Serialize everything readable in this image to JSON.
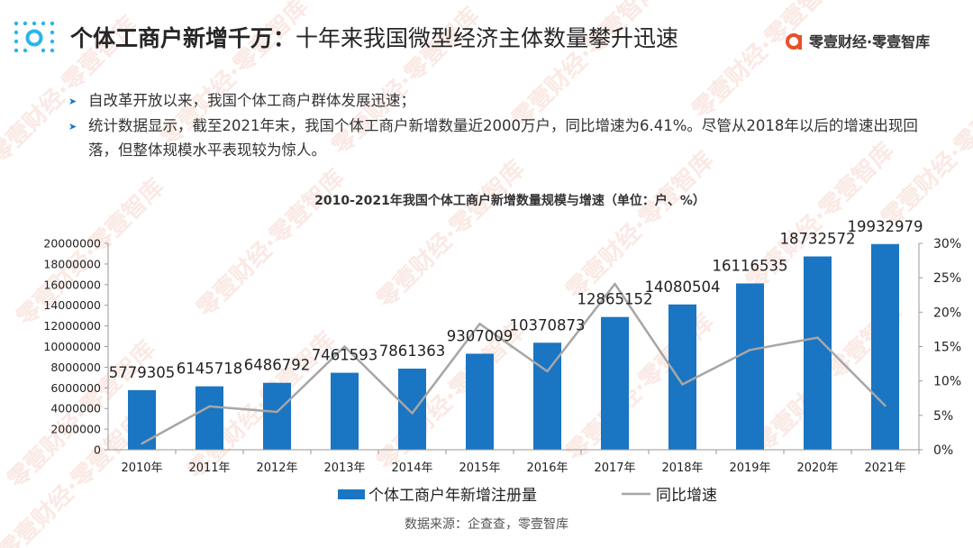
{
  "header": {
    "title_bold": "个体工商户新增千万：",
    "title_rest": "十年来我国微型经济主体数量攀升迅速",
    "brand_name": "零壹财经·零壹智库",
    "brand_icon": "brand-logo-icon"
  },
  "bullets": [
    "自改革开放以来，我国个体工商户群体发展迅速；",
    "统计数据显示，截至2021年末，我国个体工商户新增数量近2000万户，同比增速为6.41%。尽管从2018年以后的增速出现回落，但整体规模水平表现较为惊人。"
  ],
  "source": "数据来源：企查查，零壹智库",
  "colors": {
    "accent": "#1a75c2",
    "bar": "#1a75c2",
    "line": "#a6a6a6",
    "title": "#262626"
  },
  "chart_data": {
    "type": "bar",
    "title": "2010-2021年我国个体工商户新增数量规模与增速（单位：户、%）",
    "categories": [
      "2010年",
      "2011年",
      "2012年",
      "2013年",
      "2014年",
      "2015年",
      "2016年",
      "2017年",
      "2018年",
      "2019年",
      "2020年",
      "2021年"
    ],
    "series": [
      {
        "name": "个体工商户年新增注册量",
        "type": "bar",
        "axis": "left",
        "values": [
          5779305,
          6145718,
          6486792,
          7461593,
          7861363,
          9307009,
          10370873,
          12865152,
          14080504,
          16116535,
          18732572,
          19932979
        ]
      },
      {
        "name": "同比增速",
        "type": "line",
        "axis": "right",
        "values": [
          0.9,
          6.3,
          5.5,
          15.0,
          5.3,
          18.3,
          11.4,
          24.1,
          9.5,
          14.5,
          16.3,
          6.4
        ]
      }
    ],
    "ylim": [
      0,
      20000000
    ],
    "yticks": [
      "0",
      "2000000",
      "4000000",
      "6000000",
      "8000000",
      "10000000",
      "12000000",
      "14000000",
      "16000000",
      "18000000",
      "20000000"
    ],
    "y2lim": [
      0,
      30
    ],
    "y2ticks": [
      "0%",
      "5%",
      "10%",
      "15%",
      "20%",
      "25%",
      "30%"
    ],
    "xlabel": "",
    "ylabel": "",
    "legend": "bottom"
  }
}
